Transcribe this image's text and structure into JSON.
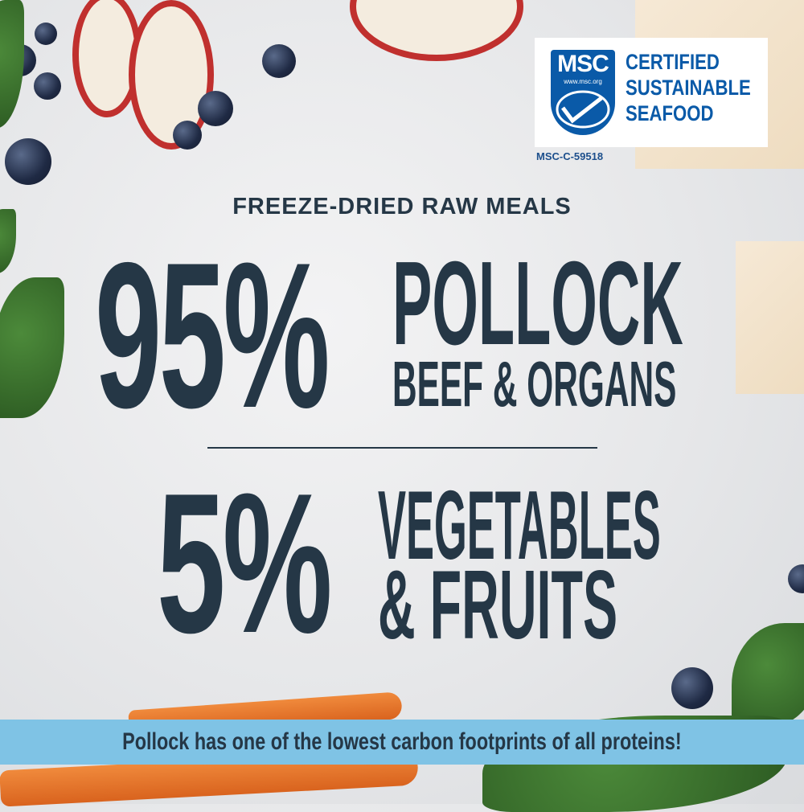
{
  "badge": {
    "logo_text": "MSC",
    "logo_url_text": "www.msc.org",
    "title_lines": [
      "CERTIFIED",
      "SUSTAINABLE",
      "SEAFOOD"
    ],
    "code": "MSC-C-59518"
  },
  "header": "FREEZE-DRIED RAW MEALS",
  "stat1": {
    "percent": "95%",
    "line1": "POLLOCK",
    "line2": "BEEF & ORGANS"
  },
  "stat2": {
    "percent": "5%",
    "line1": "VEGETABLES",
    "line2": "& FRUITS"
  },
  "banner": "Pollock has one of the lowest carbon footprints of all proteins!",
  "colors": {
    "text": "#253746",
    "banner": "#7fc3e5",
    "msc_blue": "#0a5aa8"
  }
}
